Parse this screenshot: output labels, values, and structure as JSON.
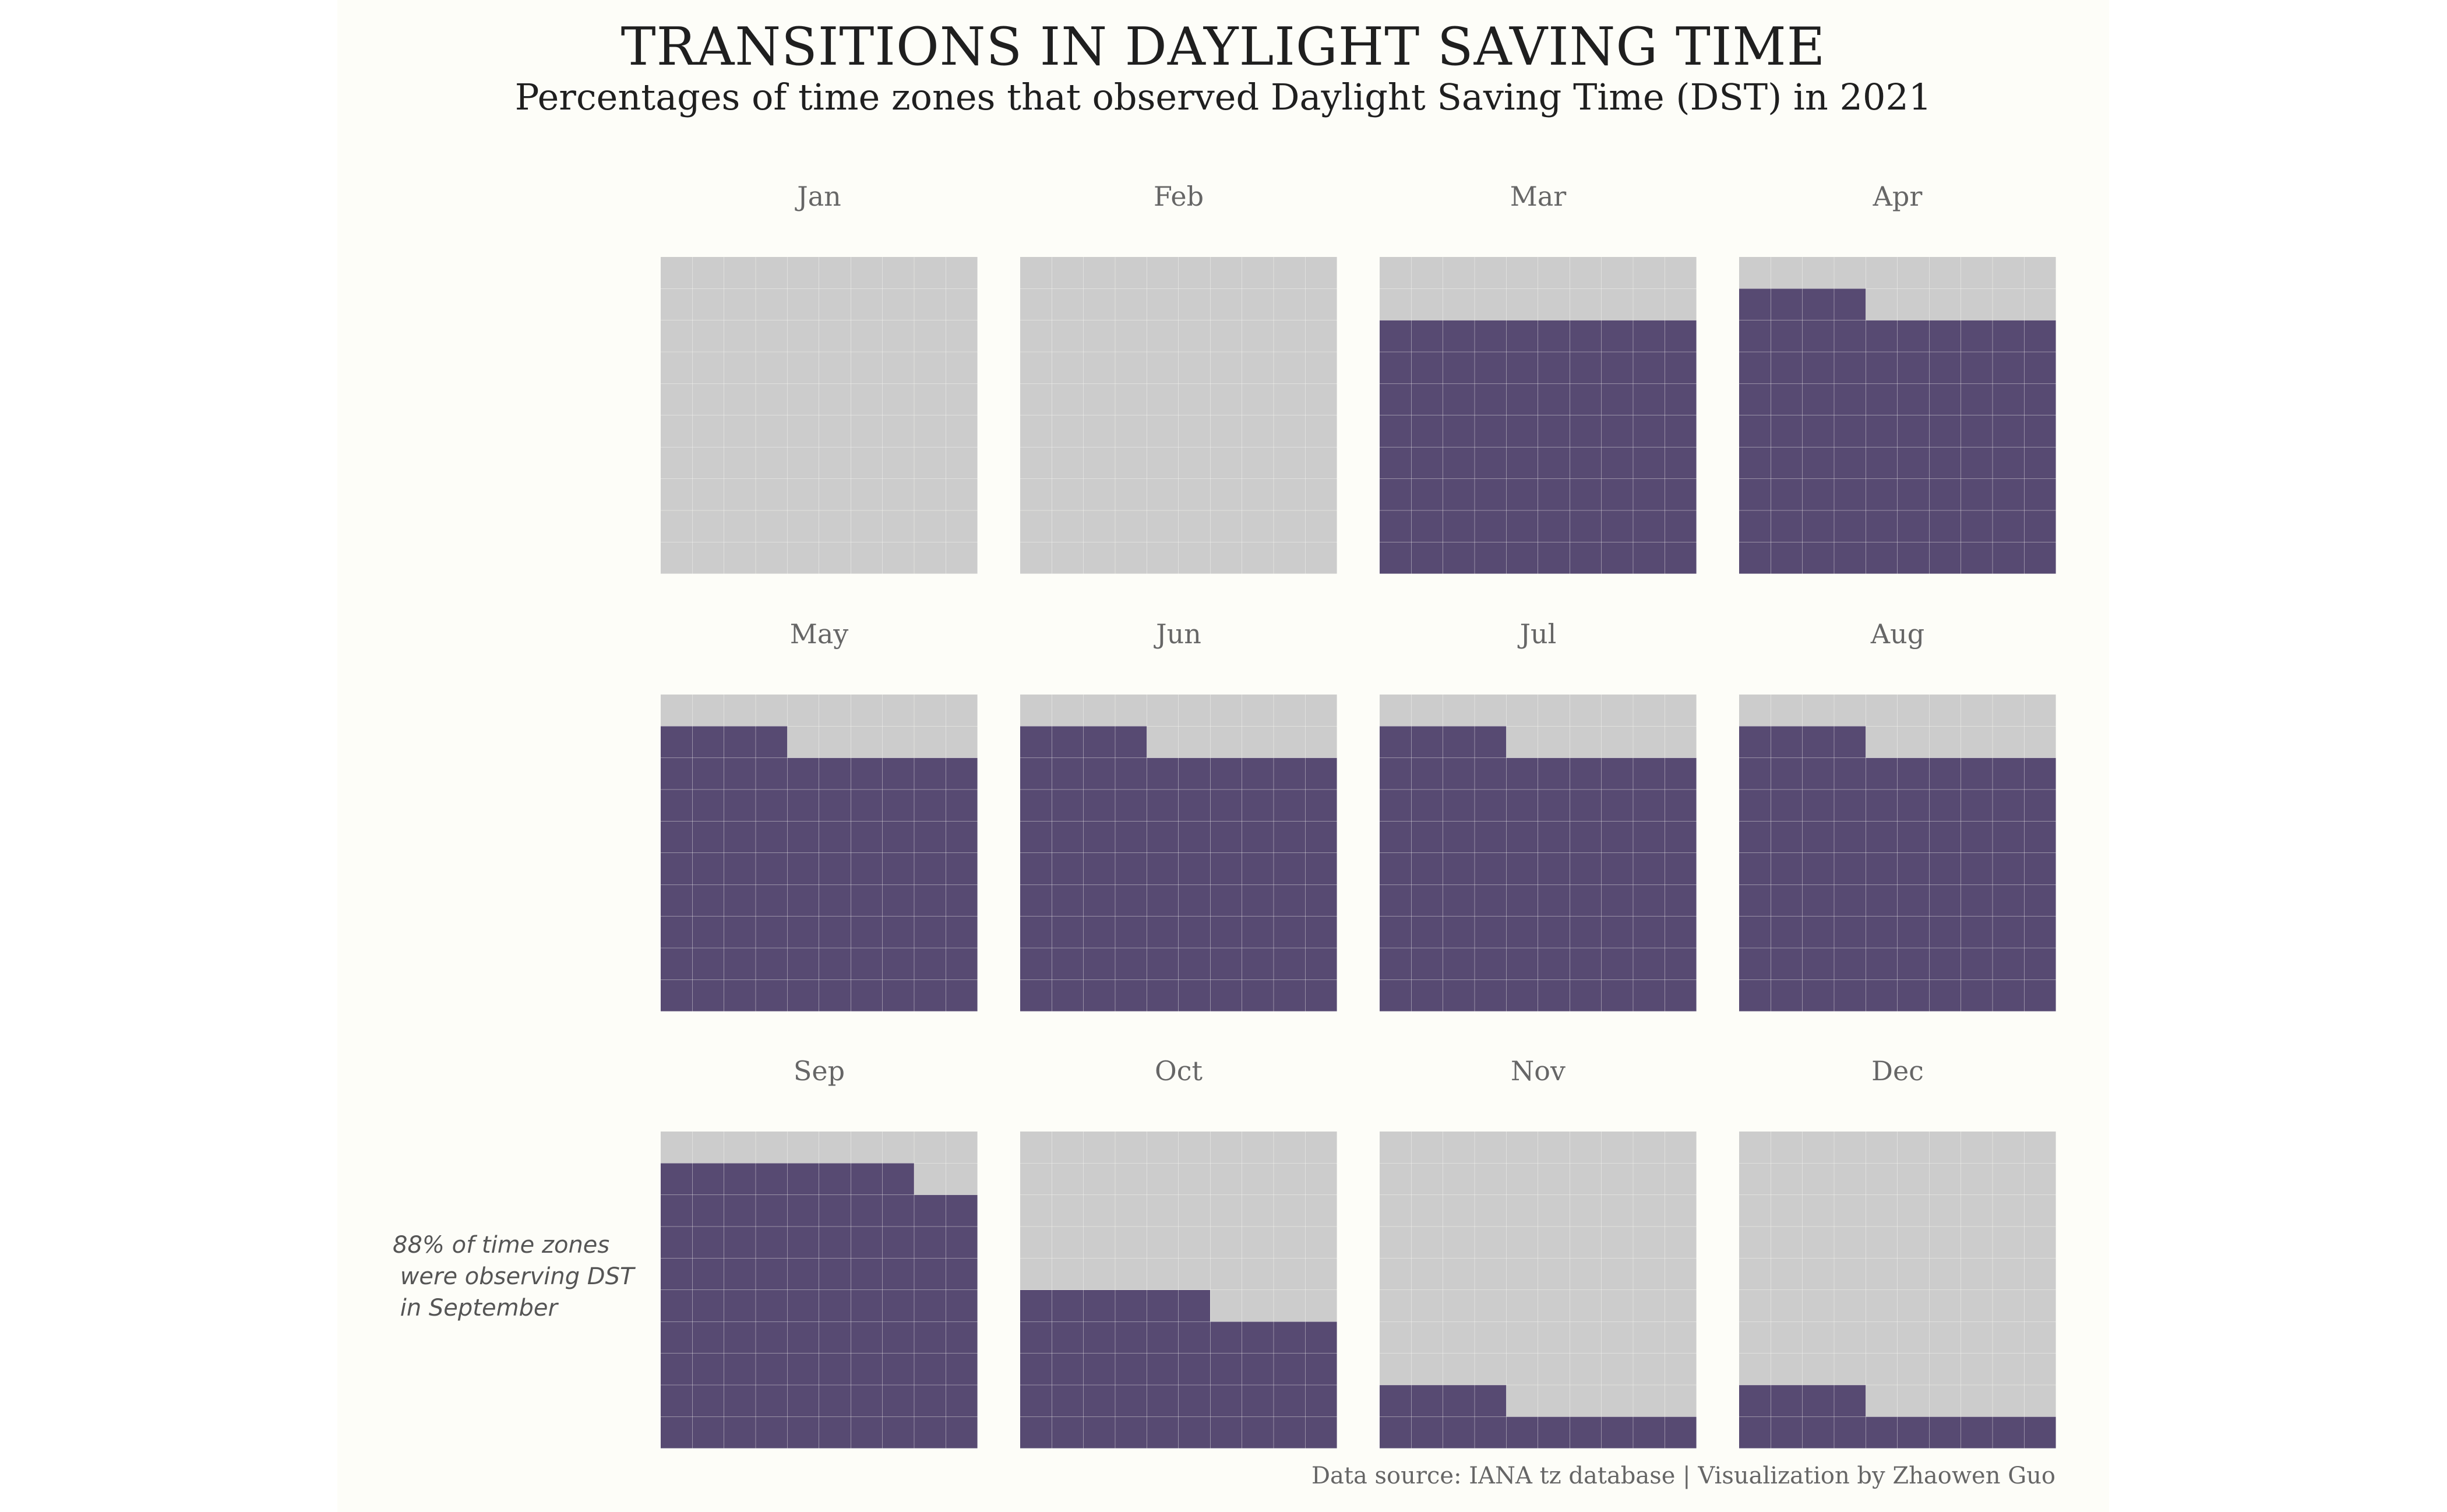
{
  "header": {
    "title": "TRANSITIONS IN DAYLIGHT SAVING TIME",
    "subtitle": "Percentages of time zones that observed Daylight Saving Time (DST) in 2021"
  },
  "annotation": "88% of time zones\n were observing DST\n in September",
  "caption": "Data source: IANA tz database | Visualization by Zhaowen Guo",
  "colors": {
    "dst": "#574a72",
    "no_dst": "#cccccc",
    "background": "#fdfdf8"
  },
  "chart_data": {
    "type": "waffle",
    "title": "TRANSITIONS IN DAYLIGHT SAVING TIME",
    "subtitle": "Percentages of time zones that observed Daylight Saving Time (DST) in 2021",
    "grid": [
      10,
      10
    ],
    "unit": "percent of time zones observing DST",
    "categories": [
      "Jan",
      "Feb",
      "Mar",
      "Apr",
      "May",
      "Jun",
      "Jul",
      "Aug",
      "Sep",
      "Oct",
      "Nov",
      "Dec"
    ],
    "values": [
      0,
      0,
      80,
      84,
      84,
      84,
      84,
      84,
      88,
      46,
      14,
      14
    ]
  }
}
